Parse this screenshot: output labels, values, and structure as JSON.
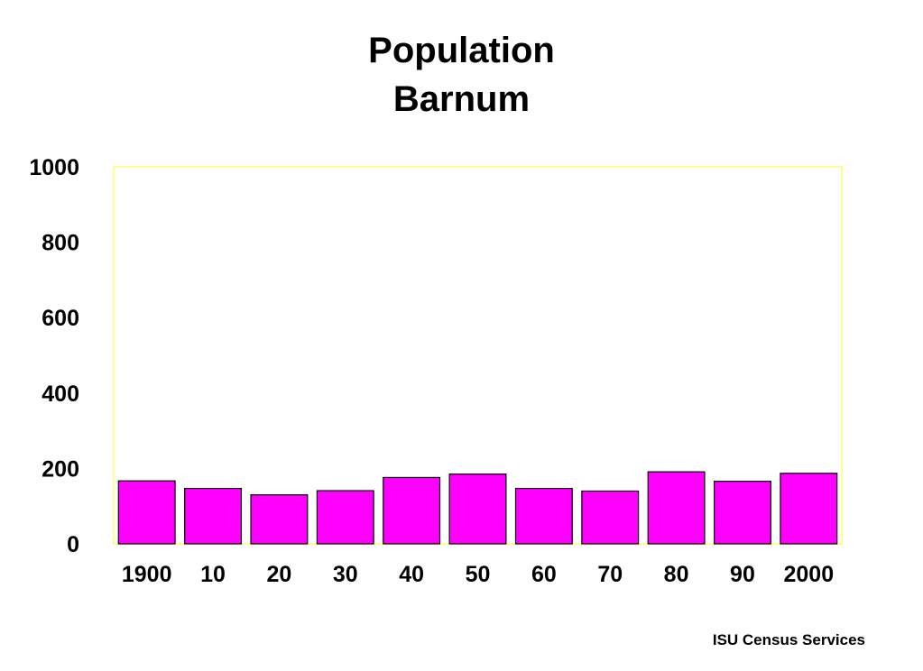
{
  "title": "Population",
  "subtitle": "Barnum",
  "footer": "ISU Census Services",
  "colors": {
    "bar_fill": "#ff00ff",
    "bar_stroke": "#000000",
    "plot_border": "#ffff66",
    "background": "#ffffff"
  },
  "chart_data": {
    "type": "bar",
    "title": "Population",
    "subtitle": "Barnum",
    "categories": [
      "1900",
      "10",
      "20",
      "30",
      "40",
      "50",
      "60",
      "70",
      "80",
      "90",
      "2000"
    ],
    "values": [
      167,
      147,
      130,
      141,
      176,
      185,
      147,
      140,
      191,
      166,
      187
    ],
    "ylim": [
      0,
      1000
    ],
    "yticks": [
      0,
      200,
      400,
      600,
      800,
      1000
    ],
    "xlabel": "",
    "ylabel": "",
    "grid": false,
    "legend": "none"
  }
}
